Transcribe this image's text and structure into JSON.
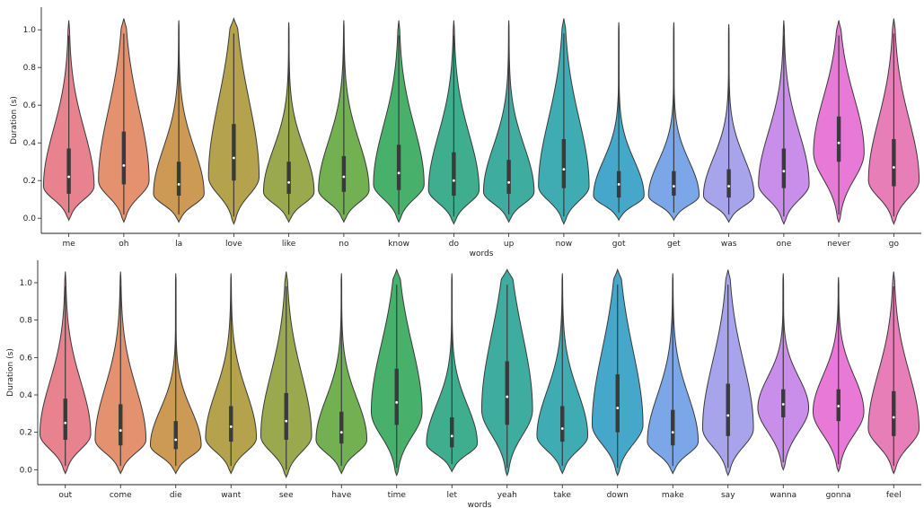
{
  "colors": {
    "palette": [
      "#e8828f",
      "#e3916e",
      "#cc9a55",
      "#b4a34c",
      "#9aa84e",
      "#72b052",
      "#47b16c",
      "#3fae8e",
      "#3ead9f",
      "#3facb4",
      "#45a7c9",
      "#7ba7e8",
      "#a8a4ec",
      "#c98ee9",
      "#e879d6",
      "#e87eb7"
    ]
  },
  "chart_data": [
    {
      "type": "violin",
      "xlabel": "words",
      "ylabel": "Duration (s)",
      "ylim": [
        -0.08,
        1.12
      ],
      "yticks": [
        "0.0",
        "0.2",
        "0.4",
        "0.6",
        "0.8",
        "1.0"
      ],
      "grid": false,
      "categories": [
        "me",
        "oh",
        "la",
        "love",
        "like",
        "no",
        "know",
        "do",
        "up",
        "now",
        "got",
        "get",
        "was",
        "one",
        "never",
        "go"
      ],
      "min": [
        -0.01,
        -0.02,
        -0.02,
        -0.03,
        -0.02,
        -0.02,
        -0.02,
        -0.03,
        -0.02,
        -0.03,
        -0.01,
        -0.01,
        -0.02,
        -0.03,
        -0.02,
        -0.03
      ],
      "max": [
        1.05,
        1.06,
        1.05,
        1.06,
        1.04,
        1.05,
        1.05,
        1.05,
        1.05,
        1.06,
        1.04,
        1.04,
        1.03,
        1.05,
        1.05,
        1.06
      ],
      "q1": [
        0.13,
        0.18,
        0.12,
        0.2,
        0.13,
        0.14,
        0.15,
        0.12,
        0.13,
        0.16,
        0.11,
        0.12,
        0.11,
        0.16,
        0.3,
        0.17
      ],
      "median": [
        0.22,
        0.28,
        0.18,
        0.32,
        0.19,
        0.22,
        0.24,
        0.2,
        0.19,
        0.26,
        0.18,
        0.17,
        0.17,
        0.25,
        0.4,
        0.27
      ],
      "q3": [
        0.37,
        0.46,
        0.3,
        0.5,
        0.3,
        0.33,
        0.39,
        0.35,
        0.31,
        0.42,
        0.25,
        0.25,
        0.26,
        0.37,
        0.54,
        0.42
      ],
      "mode": [
        0.17,
        0.2,
        0.13,
        0.22,
        0.14,
        0.15,
        0.18,
        0.15,
        0.14,
        0.17,
        0.12,
        0.12,
        0.12,
        0.18,
        0.35,
        0.2
      ]
    },
    {
      "type": "violin",
      "xlabel": "words",
      "ylabel": "Duration (s)",
      "ylim": [
        -0.08,
        1.12
      ],
      "yticks": [
        "0.0",
        "0.2",
        "0.4",
        "0.6",
        "0.8",
        "1.0"
      ],
      "grid": false,
      "categories": [
        "out",
        "come",
        "die",
        "want",
        "see",
        "have",
        "time",
        "let",
        "yeah",
        "take",
        "down",
        "make",
        "say",
        "wanna",
        "gonna",
        "feel"
      ],
      "min": [
        -0.02,
        -0.02,
        -0.02,
        -0.02,
        -0.04,
        -0.02,
        -0.03,
        -0.01,
        -0.03,
        -0.02,
        -0.03,
        -0.02,
        -0.03,
        0.0,
        -0.01,
        -0.02
      ],
      "max": [
        1.06,
        1.06,
        1.05,
        1.05,
        1.06,
        1.05,
        1.07,
        1.05,
        1.07,
        1.05,
        1.07,
        1.05,
        1.07,
        1.05,
        1.03,
        1.06
      ],
      "q1": [
        0.16,
        0.13,
        0.11,
        0.15,
        0.16,
        0.14,
        0.24,
        0.12,
        0.24,
        0.15,
        0.2,
        0.13,
        0.18,
        0.28,
        0.26,
        0.18
      ],
      "median": [
        0.25,
        0.21,
        0.16,
        0.23,
        0.26,
        0.2,
        0.36,
        0.18,
        0.39,
        0.22,
        0.33,
        0.2,
        0.29,
        0.35,
        0.34,
        0.28
      ],
      "q3": [
        0.38,
        0.35,
        0.26,
        0.34,
        0.41,
        0.31,
        0.54,
        0.28,
        0.58,
        0.34,
        0.51,
        0.32,
        0.46,
        0.43,
        0.43,
        0.42
      ],
      "mode": [
        0.19,
        0.16,
        0.13,
        0.17,
        0.18,
        0.16,
        0.31,
        0.14,
        0.32,
        0.18,
        0.24,
        0.15,
        0.22,
        0.33,
        0.31,
        0.22
      ]
    }
  ]
}
